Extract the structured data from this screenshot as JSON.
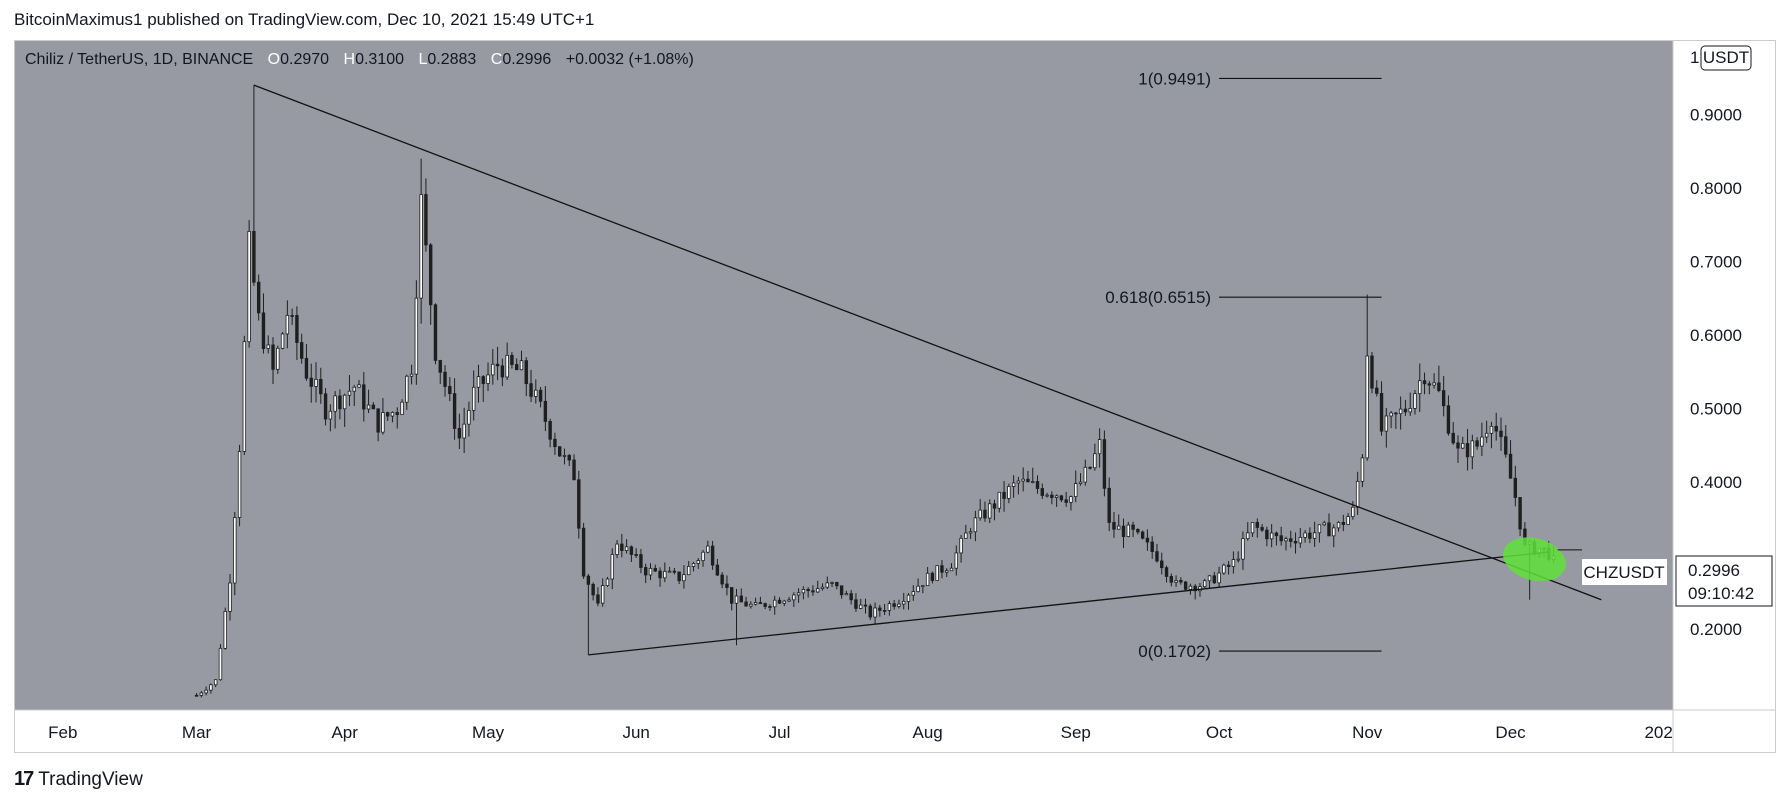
{
  "header": {
    "text": "BitcoinMaximus1 published on TradingView.com, Dec 10, 2021 15:49 UTC+1"
  },
  "footer": {
    "brand": "TradingView",
    "logo_glyph": "17"
  },
  "legend": {
    "symbol": "Chiliz / TetherUS, 1D, BINANCE",
    "o_label": "O",
    "o_value": "0.2970",
    "h_label": "H",
    "h_value": "0.3100",
    "l_label": "L",
    "l_value": "0.2883",
    "c_label": "C",
    "c_value": "0.2996",
    "change": "+0.0032 (+1.08%)"
  },
  "scale": {
    "scale_label": "1",
    "currency_label": "USDT"
  },
  "price_tag": {
    "symbol": "CHZUSDT",
    "price": "0.2996",
    "countdown": "09:10:42"
  },
  "colors": {
    "plot_bg": "#979aa3",
    "candle": "#1f1f1f",
    "trendline": "#111111",
    "highlight": "#5ee23a",
    "tag_bg": "#ffffff"
  },
  "chart_data": {
    "type": "candlestick",
    "x_tick_labels": [
      "Feb",
      "Mar",
      "Apr",
      "May",
      "Jun",
      "Jul",
      "Aug",
      "Sep",
      "Oct",
      "Nov",
      "Dec",
      "202"
    ],
    "y_tick_labels": [
      "0.9000",
      "0.8000",
      "0.7000",
      "0.6000",
      "0.5000",
      "0.4000",
      "0.2000"
    ],
    "y_tick_values": [
      0.9,
      0.8,
      0.7,
      0.6,
      0.5,
      0.4,
      0.2
    ],
    "ylim": [
      0.09,
      1.0
    ],
    "xlim": [
      "2021-01-22",
      "2022-01-04"
    ],
    "fib_levels": [
      {
        "label": "1(0.9491)",
        "value": 0.9491
      },
      {
        "label": "0.618(0.6515)",
        "value": 0.6515
      },
      {
        "label": "0(0.1702)",
        "value": 0.1702
      }
    ],
    "fib_x_range": [
      "2021-10-01",
      "2021-11-04"
    ],
    "trendlines": [
      {
        "name": "descending resistance",
        "points": [
          [
            "2021-03-13",
            0.94
          ],
          [
            "2021-12-20",
            0.24
          ]
        ]
      },
      {
        "name": "ascending support",
        "points": [
          [
            "2021-05-22",
            0.165
          ],
          [
            "2021-12-09",
            0.305
          ]
        ]
      }
    ],
    "highlight": {
      "x": "2021-12-06",
      "y": 0.295
    },
    "close_price": 0.2996,
    "price_path": [
      [
        "2021-03-01",
        0.11
      ],
      [
        "2021-03-05",
        0.13
      ],
      [
        "2021-03-08",
        0.27
      ],
      [
        "2021-03-10",
        0.45
      ],
      [
        "2021-03-12",
        0.72
      ],
      [
        "2021-03-14",
        0.62
      ],
      [
        "2021-03-17",
        0.55
      ],
      [
        "2021-03-20",
        0.63
      ],
      [
        "2021-03-24",
        0.55
      ],
      [
        "2021-03-28",
        0.5
      ],
      [
        "2021-04-03",
        0.53
      ],
      [
        "2021-04-08",
        0.48
      ],
      [
        "2021-04-12",
        0.5
      ],
      [
        "2021-04-15",
        0.56
      ],
      [
        "2021-04-17",
        0.78
      ],
      [
        "2021-04-20",
        0.58
      ],
      [
        "2021-04-25",
        0.46
      ],
      [
        "2021-04-28",
        0.52
      ],
      [
        "2021-05-03",
        0.56
      ],
      [
        "2021-05-08",
        0.55
      ],
      [
        "2021-05-12",
        0.5
      ],
      [
        "2021-05-16",
        0.44
      ],
      [
        "2021-05-19",
        0.41
      ],
      [
        "2021-05-21",
        0.28
      ],
      [
        "2021-05-24",
        0.23
      ],
      [
        "2021-05-28",
        0.32
      ],
      [
        "2021-06-03",
        0.28
      ],
      [
        "2021-06-10",
        0.27
      ],
      [
        "2021-06-16",
        0.31
      ],
      [
        "2021-06-21",
        0.24
      ],
      [
        "2021-06-26",
        0.23
      ],
      [
        "2021-07-05",
        0.25
      ],
      [
        "2021-07-12",
        0.26
      ],
      [
        "2021-07-20",
        0.22
      ],
      [
        "2021-07-26",
        0.24
      ],
      [
        "2021-08-01",
        0.27
      ],
      [
        "2021-08-06",
        0.29
      ],
      [
        "2021-08-10",
        0.34
      ],
      [
        "2021-08-15",
        0.37
      ],
      [
        "2021-08-20",
        0.4
      ],
      [
        "2021-08-25",
        0.39
      ],
      [
        "2021-08-31",
        0.38
      ],
      [
        "2021-09-04",
        0.42
      ],
      [
        "2021-09-06",
        0.45
      ],
      [
        "2021-09-08",
        0.34
      ],
      [
        "2021-09-13",
        0.33
      ],
      [
        "2021-09-18",
        0.3
      ],
      [
        "2021-09-22",
        0.26
      ],
      [
        "2021-09-28",
        0.26
      ],
      [
        "2021-10-04",
        0.29
      ],
      [
        "2021-10-08",
        0.34
      ],
      [
        "2021-10-14",
        0.32
      ],
      [
        "2021-10-20",
        0.33
      ],
      [
        "2021-10-26",
        0.34
      ],
      [
        "2021-10-29",
        0.36
      ],
      [
        "2021-10-31",
        0.44
      ],
      [
        "2021-11-01",
        0.58
      ],
      [
        "2021-11-04",
        0.47
      ],
      [
        "2021-11-09",
        0.5
      ],
      [
        "2021-11-13",
        0.55
      ],
      [
        "2021-11-16",
        0.52
      ],
      [
        "2021-11-20",
        0.44
      ],
      [
        "2021-11-24",
        0.45
      ],
      [
        "2021-11-27",
        0.49
      ],
      [
        "2021-11-30",
        0.43
      ],
      [
        "2021-12-02",
        0.38
      ],
      [
        "2021-12-04",
        0.31
      ],
      [
        "2021-12-07",
        0.31
      ],
      [
        "2021-12-10",
        0.2996
      ]
    ]
  }
}
